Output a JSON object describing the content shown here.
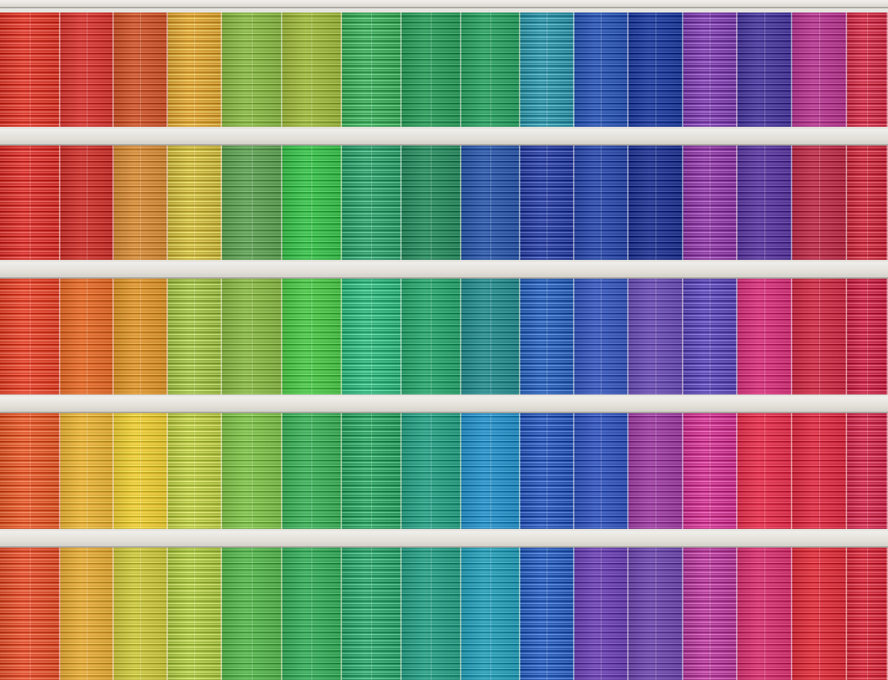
{
  "image": {
    "subject": "facade",
    "floors": [
      {
        "colors": [
          "#d8392c",
          "#d13a35",
          "#c9562f",
          "#d8a035",
          "#88b548",
          "#9cb541",
          "#3da659",
          "#2f9a5c",
          "#2f9e63",
          "#2f8fa2",
          "#2e56b0",
          "#223e9b",
          "#7a3fa8",
          "#4a3a9a",
          "#b23a8e",
          "#c93048"
        ]
      },
      {
        "colors": [
          "#d4332e",
          "#c83530",
          "#d08a3a",
          "#c9b53f",
          "#5f9f55",
          "#3cbc4d",
          "#2f9a6a",
          "#2c8a60",
          "#2e58a6",
          "#2a3f9c",
          "#2d4aa6",
          "#23358f",
          "#8a3aa0",
          "#5a3a9c",
          "#b8304a",
          "#c42d3f"
        ]
      },
      {
        "colors": [
          "#e0442c",
          "#e06b2c",
          "#d9932f",
          "#9dbb47",
          "#88b548",
          "#4dc24a",
          "#31b07a",
          "#2da26e",
          "#2a8a8c",
          "#2b5fb3",
          "#3a58b8",
          "#6a4fb0",
          "#5b48b0",
          "#d1357a",
          "#c93048",
          "#c42848"
        ]
      },
      {
        "colors": [
          "#e0582c",
          "#e4b03a",
          "#e8c838",
          "#b5c645",
          "#7ebd4c",
          "#3fac5a",
          "#2e9e60",
          "#2b9d82",
          "#2a8fc4",
          "#2b56b3",
          "#3555b8",
          "#9a3f9e",
          "#c9358c",
          "#e0334f",
          "#d82f45",
          "#c92d4e"
        ]
      },
      {
        "colors": [
          "#de4f2e",
          "#e0a83a",
          "#c7c341",
          "#a8c244",
          "#58b250",
          "#3aa95c",
          "#2f9f6a",
          "#2c9c84",
          "#2a9cb4",
          "#2b5cb6",
          "#6c44b0",
          "#6d4aaa",
          "#b03c96",
          "#d13570",
          "#d9323e",
          "#cf2d3d"
        ]
      }
    ]
  }
}
